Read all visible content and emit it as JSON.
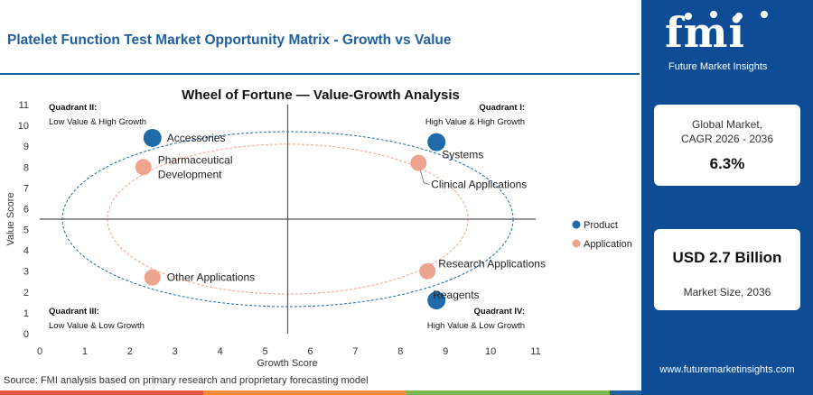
{
  "page": {
    "title": "Platelet Function Test Market Opportunity Matrix - Growth vs Value",
    "source": "Source: FMI analysis based on primary research and proprietary forecasting model"
  },
  "sidebar": {
    "logo_text": "fmi",
    "logo_subtitle": "Future Market Insights",
    "cagr_label_line1": "Global Market,",
    "cagr_label_line2": "CAGR 2026 - 2036",
    "cagr_value": "6.3%",
    "size_value": "USD 2.7 Billion",
    "size_label": "Market Size, 2036",
    "url": "www.futuremarketinsights.com",
    "background_color": "#0e4d96"
  },
  "bottom_bar_colors": [
    "#e8583c",
    "#f08a3c",
    "#7ab648",
    "#1f5f9e"
  ],
  "chart_data": {
    "type": "scatter",
    "title": "Wheel of Fortune — Value-Growth Analysis",
    "xlabel": "Growth Score",
    "ylabel": "Value Score",
    "xlim": [
      0,
      11
    ],
    "ylim": [
      0,
      11
    ],
    "xticks": [
      "0",
      "1",
      "2",
      "3",
      "4",
      "5",
      "6",
      "7",
      "8",
      "9",
      "10",
      "11"
    ],
    "yticks": [
      "0",
      "1",
      "2",
      "3",
      "4",
      "5",
      "6",
      "7",
      "8",
      "9",
      "10",
      "11"
    ],
    "divider_x": 5.5,
    "divider_y": 5.5,
    "quadrants": [
      {
        "title": "Quadrant II:",
        "subtitle": "Low Value & High Growth",
        "position": "top-left"
      },
      {
        "title": "Quadrant I:",
        "subtitle": "High Value & High Growth",
        "position": "top-right"
      },
      {
        "title": "Quadrant III:",
        "subtitle": "Low Value & Low Growth",
        "position": "bottom-left"
      },
      {
        "title": "Quadrant IV:",
        "subtitle": "High Value & Low Growth",
        "position": "bottom-right"
      }
    ],
    "series": [
      {
        "name": "Product",
        "color": "#1f6aa8",
        "points": [
          {
            "label": "Accessories",
            "x": 2.5,
            "y": 9.4
          },
          {
            "label": "Systems",
            "x": 8.8,
            "y": 9.2
          },
          {
            "label": "Reagents",
            "x": 8.8,
            "y": 1.6
          }
        ]
      },
      {
        "name": "Application",
        "color": "#eda58f",
        "points": [
          {
            "label": "Pharmaceutical Development",
            "x": 2.3,
            "y": 8.0
          },
          {
            "label": "Clinical Applications",
            "x": 8.4,
            "y": 8.2
          },
          {
            "label": "Other Applications",
            "x": 2.5,
            "y": 2.7
          },
          {
            "label": "Research Applications",
            "x": 8.6,
            "y": 3.0
          }
        ]
      }
    ],
    "ellipses": [
      {
        "series": "Product",
        "cx": 5.5,
        "cy": 5.5,
        "rx": 5.0,
        "ry": 4.2
      },
      {
        "series": "Application",
        "cx": 5.5,
        "cy": 5.5,
        "rx": 4.0,
        "ry": 3.6
      }
    ],
    "legend": {
      "position": "right",
      "items": [
        "Product",
        "Application"
      ]
    },
    "grid": false
  }
}
